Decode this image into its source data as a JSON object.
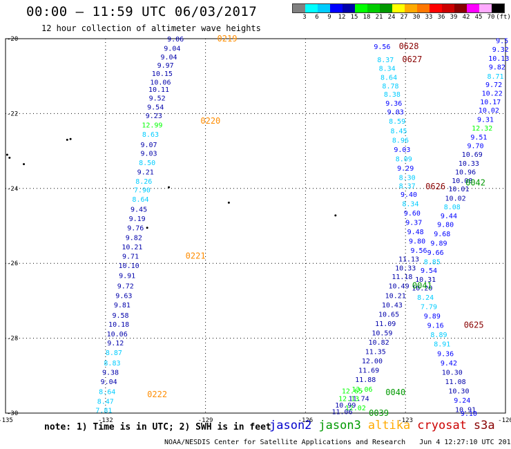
{
  "header": {
    "title": "00:00 — 11:59 UTC 06/03/2017",
    "subtitle": "12 hour collection of altimeter wave heights"
  },
  "colorbar": {
    "colors": [
      "#808080",
      "#00ffff",
      "#00ccff",
      "#0000ff",
      "#0000aa",
      "#00ff00",
      "#00cc00",
      "#009900",
      "#ffff00",
      "#ffaa00",
      "#ff7700",
      "#ff0000",
      "#cc0000",
      "#880000",
      "#ff00ff",
      "#ffaaff",
      "#000000"
    ],
    "labels": [
      "3",
      "6",
      "9",
      "12",
      "15",
      "18",
      "21",
      "24",
      "27",
      "30",
      "33",
      "36",
      "39",
      "42",
      "45",
      "70",
      "(ft)"
    ]
  },
  "axes": {
    "lon_ticks": [
      "-135",
      "-132",
      "-129",
      "-126",
      "-123",
      "-120"
    ],
    "lat_ticks": [
      "-20",
      "-22",
      "-24",
      "-26",
      "-28",
      "-30"
    ]
  },
  "map": {
    "lon_range": [
      -135,
      -120
    ],
    "lat_range": [
      -30,
      -20
    ],
    "islands": [
      {
        "lon": -133.05,
        "lat": -22.68
      },
      {
        "lon": -133.15,
        "lat": -22.7
      },
      {
        "lon": -134.95,
        "lat": -23.1
      },
      {
        "lon": -134.88,
        "lat": -23.18
      },
      {
        "lon": -134.45,
        "lat": -23.35
      },
      {
        "lon": -130.1,
        "lat": -23.97
      },
      {
        "lon": -130.75,
        "lat": -25.05
      },
      {
        "lon": -128.3,
        "lat": -24.38
      },
      {
        "lon": -125.1,
        "lat": -24.72
      }
    ]
  },
  "series_colors": {
    "jason2": "#0000cc",
    "jason3": "#009900",
    "altika": "#ffaa00",
    "cryosat": "#cc0000",
    "s3a": "#880000",
    "c3": "#00ccff",
    "c4": "#0000ff",
    "c5": "#0000aa",
    "c6": "#00ff00",
    "track": "#ff8c00"
  },
  "tracks": [
    {
      "lon": -128.35,
      "lat": -20.0,
      "text": "0219",
      "color": "#ff8c00"
    },
    {
      "lon": -128.85,
      "lat": -22.2,
      "text": "0220",
      "color": "#ff8c00"
    },
    {
      "lon": -129.3,
      "lat": -25.8,
      "text": "0221",
      "color": "#ff8c00"
    },
    {
      "lon": -130.45,
      "lat": -29.5,
      "text": "0222",
      "color": "#ff8c00"
    },
    {
      "lon": -122.9,
      "lat": -20.2,
      "text": "0628",
      "color": "#880000"
    },
    {
      "lon": -122.8,
      "lat": -20.55,
      "text": "0627",
      "color": "#880000"
    },
    {
      "lon": -122.1,
      "lat": -23.95,
      "text": "0626",
      "color": "#880000"
    },
    {
      "lon": -120.9,
      "lat": -23.85,
      "text": "0042",
      "color": "#009900"
    },
    {
      "lon": -122.5,
      "lat": -26.6,
      "text": "0041",
      "color": "#009900"
    },
    {
      "lon": -120.95,
      "lat": -27.65,
      "text": "0625",
      "color": "#880000"
    },
    {
      "lon": -123.3,
      "lat": -29.45,
      "text": "0040",
      "color": "#009900"
    },
    {
      "lon": -123.8,
      "lat": -30.0,
      "text": "0039",
      "color": "#009900"
    }
  ],
  "observations": [
    {
      "lon": -129.9,
      "lat": -20.0,
      "v": "9.06",
      "c": "#0000aa"
    },
    {
      "lon": -130.0,
      "lat": -20.25,
      "v": "9.04",
      "c": "#0000aa"
    },
    {
      "lon": -130.1,
      "lat": -20.48,
      "v": "9.04",
      "c": "#0000aa"
    },
    {
      "lon": -130.2,
      "lat": -20.7,
      "v": "9.97",
      "c": "#0000aa"
    },
    {
      "lon": -130.3,
      "lat": -20.92,
      "v": "10.15",
      "c": "#0000aa"
    },
    {
      "lon": -130.35,
      "lat": -21.15,
      "v": "10.06",
      "c": "#0000aa"
    },
    {
      "lon": -130.4,
      "lat": -21.35,
      "v": "10.11",
      "c": "#0000aa"
    },
    {
      "lon": -130.45,
      "lat": -21.58,
      "v": "9.52",
      "c": "#0000aa"
    },
    {
      "lon": -130.5,
      "lat": -21.82,
      "v": "9.54",
      "c": "#0000aa"
    },
    {
      "lon": -130.55,
      "lat": -22.05,
      "v": "9.23",
      "c": "#0000aa"
    },
    {
      "lon": -130.6,
      "lat": -22.3,
      "v": "12.99",
      "c": "#00ff00"
    },
    {
      "lon": -130.65,
      "lat": -22.55,
      "v": "8.63",
      "c": "#00ccff"
    },
    {
      "lon": -130.7,
      "lat": -22.82,
      "v": "9.07",
      "c": "#0000aa"
    },
    {
      "lon": -130.7,
      "lat": -23.05,
      "v": "9.03",
      "c": "#0000aa"
    },
    {
      "lon": -130.75,
      "lat": -23.3,
      "v": "8.50",
      "c": "#00ccff"
    },
    {
      "lon": -130.8,
      "lat": -23.55,
      "v": "9.21",
      "c": "#0000aa"
    },
    {
      "lon": -130.85,
      "lat": -23.8,
      "v": "8.26",
      "c": "#00ccff"
    },
    {
      "lon": -130.9,
      "lat": -24.03,
      "v": "7.90",
      "c": "#00ccff"
    },
    {
      "lon": -130.95,
      "lat": -24.28,
      "v": "8.64",
      "c": "#00ccff"
    },
    {
      "lon": -131.0,
      "lat": -24.55,
      "v": "9.45",
      "c": "#0000aa"
    },
    {
      "lon": -131.05,
      "lat": -24.8,
      "v": "9.19",
      "c": "#0000aa"
    },
    {
      "lon": -131.1,
      "lat": -25.05,
      "v": "9.76",
      "c": "#0000aa"
    },
    {
      "lon": -131.15,
      "lat": -25.3,
      "v": "9.82",
      "c": "#0000aa"
    },
    {
      "lon": -131.2,
      "lat": -25.55,
      "v": "10.21",
      "c": "#0000aa"
    },
    {
      "lon": -131.25,
      "lat": -25.8,
      "v": "9.71",
      "c": "#0000aa"
    },
    {
      "lon": -131.3,
      "lat": -26.05,
      "v": "10.10",
      "c": "#0000aa"
    },
    {
      "lon": -131.35,
      "lat": -26.32,
      "v": "9.91",
      "c": "#0000aa"
    },
    {
      "lon": -131.4,
      "lat": -26.6,
      "v": "9.72",
      "c": "#0000aa"
    },
    {
      "lon": -131.45,
      "lat": -26.85,
      "v": "9.63",
      "c": "#0000aa"
    },
    {
      "lon": -131.5,
      "lat": -27.1,
      "v": "9.81",
      "c": "#0000aa"
    },
    {
      "lon": -131.55,
      "lat": -27.38,
      "v": "9.58",
      "c": "#0000aa"
    },
    {
      "lon": -131.6,
      "lat": -27.62,
      "v": "10.18",
      "c": "#0000aa"
    },
    {
      "lon": -131.65,
      "lat": -27.88,
      "v": "10.06",
      "c": "#0000aa"
    },
    {
      "lon": -131.7,
      "lat": -28.12,
      "v": "9.12",
      "c": "#0000aa"
    },
    {
      "lon": -131.75,
      "lat": -28.38,
      "v": "8.87",
      "c": "#00ccff"
    },
    {
      "lon": -131.8,
      "lat": -28.65,
      "v": "8.83",
      "c": "#00ccff"
    },
    {
      "lon": -131.85,
      "lat": -28.9,
      "v": "9.38",
      "c": "#0000aa"
    },
    {
      "lon": -131.9,
      "lat": -29.15,
      "v": "9.04",
      "c": "#0000aa"
    },
    {
      "lon": -131.95,
      "lat": -29.42,
      "v": "8.64",
      "c": "#00ccff"
    },
    {
      "lon": -132.0,
      "lat": -29.68,
      "v": "8.47",
      "c": "#00ccff"
    },
    {
      "lon": -132.05,
      "lat": -29.92,
      "v": "7.81",
      "c": "#00ccff"
    },
    {
      "lon": -123.7,
      "lat": -20.2,
      "v": "9.56",
      "c": "#0000ff"
    },
    {
      "lon": -123.6,
      "lat": -20.55,
      "v": "8.37",
      "c": "#00ccff"
    },
    {
      "lon": -123.55,
      "lat": -20.78,
      "v": "8.34",
      "c": "#00ccff"
    },
    {
      "lon": -123.5,
      "lat": -21.02,
      "v": "8.64",
      "c": "#00ccff"
    },
    {
      "lon": -123.45,
      "lat": -21.25,
      "v": "8.78",
      "c": "#00ccff"
    },
    {
      "lon": -123.4,
      "lat": -21.48,
      "v": "8.38",
      "c": "#00ccff"
    },
    {
      "lon": -123.35,
      "lat": -21.72,
      "v": "9.36",
      "c": "#0000ff"
    },
    {
      "lon": -123.3,
      "lat": -21.95,
      "v": "9.03",
      "c": "#0000ff"
    },
    {
      "lon": -123.25,
      "lat": -22.2,
      "v": "8.59",
      "c": "#00ccff"
    },
    {
      "lon": -123.2,
      "lat": -22.45,
      "v": "8.45",
      "c": "#00ccff"
    },
    {
      "lon": -123.15,
      "lat": -22.7,
      "v": "8.96",
      "c": "#00ccff"
    },
    {
      "lon": -123.1,
      "lat": -22.95,
      "v": "9.03",
      "c": "#0000ff"
    },
    {
      "lon": -123.05,
      "lat": -23.2,
      "v": "8.09",
      "c": "#00ccff"
    },
    {
      "lon": -123.0,
      "lat": -23.45,
      "v": "9.29",
      "c": "#0000ff"
    },
    {
      "lon": -122.95,
      "lat": -23.7,
      "v": "8.30",
      "c": "#00ccff"
    },
    {
      "lon": -122.95,
      "lat": -23.92,
      "v": "8.37",
      "c": "#00ccff"
    },
    {
      "lon": -122.9,
      "lat": -24.15,
      "v": "9.40",
      "c": "#0000ff"
    },
    {
      "lon": -122.85,
      "lat": -24.4,
      "v": "8.34",
      "c": "#00ccff"
    },
    {
      "lon": -122.8,
      "lat": -24.65,
      "v": "9.60",
      "c": "#0000ff"
    },
    {
      "lon": -122.75,
      "lat": -24.9,
      "v": "9.37",
      "c": "#0000ff"
    },
    {
      "lon": -122.7,
      "lat": -25.15,
      "v": "9.48",
      "c": "#0000ff"
    },
    {
      "lon": -122.65,
      "lat": -25.4,
      "v": "9.80",
      "c": "#0000ff"
    },
    {
      "lon": -122.6,
      "lat": -25.65,
      "v": "9.56",
      "c": "#0000ff"
    },
    {
      "lon": -122.9,
      "lat": -25.88,
      "v": "11.13",
      "c": "#0000aa"
    },
    {
      "lon": -123.0,
      "lat": -26.12,
      "v": "10.33",
      "c": "#0000aa"
    },
    {
      "lon": -123.1,
      "lat": -26.35,
      "v": "11.18",
      "c": "#0000aa"
    },
    {
      "lon": -123.2,
      "lat": -26.6,
      "v": "10.49",
      "c": "#0000aa"
    },
    {
      "lon": -123.3,
      "lat": -26.85,
      "v": "10.21",
      "c": "#0000aa"
    },
    {
      "lon": -123.4,
      "lat": -27.1,
      "v": "10.43",
      "c": "#0000aa"
    },
    {
      "lon": -123.5,
      "lat": -27.35,
      "v": "10.65",
      "c": "#0000aa"
    },
    {
      "lon": -123.6,
      "lat": -27.6,
      "v": "11.09",
      "c": "#0000aa"
    },
    {
      "lon": -123.7,
      "lat": -27.85,
      "v": "10.59",
      "c": "#0000aa"
    },
    {
      "lon": -123.8,
      "lat": -28.1,
      "v": "10.82",
      "c": "#0000aa"
    },
    {
      "lon": -123.9,
      "lat": -28.35,
      "v": "11.35",
      "c": "#0000aa"
    },
    {
      "lon": -124.0,
      "lat": -28.6,
      "v": "12.00",
      "c": "#0000aa"
    },
    {
      "lon": -124.1,
      "lat": -28.85,
      "v": "11.69",
      "c": "#0000aa"
    },
    {
      "lon": -124.2,
      "lat": -29.1,
      "v": "11.88",
      "c": "#0000aa"
    },
    {
      "lon": -124.3,
      "lat": -29.35,
      "v": "13.06",
      "c": "#00ff00"
    },
    {
      "lon": -124.4,
      "lat": -29.6,
      "v": "11.74",
      "c": "#0000aa"
    },
    {
      "lon": -124.5,
      "lat": -29.85,
      "v": "12.02",
      "c": "#00ff00"
    },
    {
      "lon": -120.1,
      "lat": -20.05,
      "v": "9.5",
      "c": "#0000ff"
    },
    {
      "lon": -120.15,
      "lat": -20.28,
      "v": "9.32",
      "c": "#0000ff"
    },
    {
      "lon": -120.2,
      "lat": -20.52,
      "v": "10.13",
      "c": "#0000ff"
    },
    {
      "lon": -120.25,
      "lat": -20.75,
      "v": "9.82",
      "c": "#0000ff"
    },
    {
      "lon": -120.3,
      "lat": -21.0,
      "v": "8.71",
      "c": "#00ccff"
    },
    {
      "lon": -120.35,
      "lat": -21.22,
      "v": "9.72",
      "c": "#0000ff"
    },
    {
      "lon": -120.4,
      "lat": -21.45,
      "v": "10.22",
      "c": "#0000ff"
    },
    {
      "lon": -120.45,
      "lat": -21.68,
      "v": "10.17",
      "c": "#0000ff"
    },
    {
      "lon": -120.5,
      "lat": -21.9,
      "v": "10.02",
      "c": "#0000ff"
    },
    {
      "lon": -120.6,
      "lat": -22.15,
      "v": "9.31",
      "c": "#0000ff"
    },
    {
      "lon": -120.7,
      "lat": -22.38,
      "v": "12.32",
      "c": "#00ff00"
    },
    {
      "lon": -120.8,
      "lat": -22.62,
      "v": "9.51",
      "c": "#0000ff"
    },
    {
      "lon": -120.9,
      "lat": -22.85,
      "v": "9.70",
      "c": "#0000ff"
    },
    {
      "lon": -121.0,
      "lat": -23.08,
      "v": "10.69",
      "c": "#0000aa"
    },
    {
      "lon": -121.1,
      "lat": -23.32,
      "v": "10.33",
      "c": "#0000aa"
    },
    {
      "lon": -121.2,
      "lat": -23.55,
      "v": "10.96",
      "c": "#0000aa"
    },
    {
      "lon": -121.3,
      "lat": -23.78,
      "v": "10.08",
      "c": "#0000aa"
    },
    {
      "lon": -121.4,
      "lat": -24.0,
      "v": "10.01",
      "c": "#0000aa"
    },
    {
      "lon": -121.5,
      "lat": -24.25,
      "v": "10.02",
      "c": "#0000aa"
    },
    {
      "lon": -121.6,
      "lat": -24.48,
      "v": "8.08",
      "c": "#00ccff"
    },
    {
      "lon": -121.7,
      "lat": -24.72,
      "v": "9.44",
      "c": "#0000ff"
    },
    {
      "lon": -121.8,
      "lat": -24.95,
      "v": "9.80",
      "c": "#0000ff"
    },
    {
      "lon": -121.9,
      "lat": -25.2,
      "v": "9.68",
      "c": "#0000ff"
    },
    {
      "lon": -122.0,
      "lat": -25.45,
      "v": "9.89",
      "c": "#0000ff"
    },
    {
      "lon": -122.1,
      "lat": -25.7,
      "v": "9.66",
      "c": "#0000ff"
    },
    {
      "lon": -122.2,
      "lat": -25.95,
      "v": "8.85",
      "c": "#00ccff"
    },
    {
      "lon": -122.3,
      "lat": -26.18,
      "v": "9.54",
      "c": "#0000ff"
    },
    {
      "lon": -122.4,
      "lat": -26.42,
      "v": "10.31",
      "c": "#0000aa"
    },
    {
      "lon": -122.5,
      "lat": -26.65,
      "v": "10.20",
      "c": "#0000aa"
    },
    {
      "lon": -122.4,
      "lat": -26.9,
      "v": "8.24",
      "c": "#00ccff"
    },
    {
      "lon": -122.3,
      "lat": -27.15,
      "v": "7.79",
      "c": "#00ccff"
    },
    {
      "lon": -122.2,
      "lat": -27.4,
      "v": "9.89",
      "c": "#0000ff"
    },
    {
      "lon": -122.1,
      "lat": -27.65,
      "v": "9.16",
      "c": "#0000ff"
    },
    {
      "lon": -122.0,
      "lat": -27.9,
      "v": "8.89",
      "c": "#00ccff"
    },
    {
      "lon": -121.9,
      "lat": -28.15,
      "v": "8.91",
      "c": "#00ccff"
    },
    {
      "lon": -121.8,
      "lat": -28.4,
      "v": "9.36",
      "c": "#0000ff"
    },
    {
      "lon": -121.7,
      "lat": -28.65,
      "v": "9.42",
      "c": "#0000ff"
    },
    {
      "lon": -121.6,
      "lat": -28.9,
      "v": "10.30",
      "c": "#0000aa"
    },
    {
      "lon": -121.5,
      "lat": -29.15,
      "v": "11.08",
      "c": "#0000aa"
    },
    {
      "lon": -121.4,
      "lat": -29.4,
      "v": "10.30",
      "c": "#0000aa"
    },
    {
      "lon": -121.3,
      "lat": -29.65,
      "v": "9.24",
      "c": "#0000ff"
    },
    {
      "lon": -121.2,
      "lat": -29.9,
      "v": "10.91",
      "c": "#0000aa"
    },
    {
      "lon": -121.1,
      "lat": -30.0,
      "v": "9.10",
      "c": "#0000ff"
    }
  ],
  "extra_obs": [
    {
      "lon": -124.6,
      "lat": -29.4,
      "v": "12.65",
      "c": "#00ff00"
    },
    {
      "lon": -124.7,
      "lat": -29.6,
      "v": "12.13",
      "c": "#00ff00"
    },
    {
      "lon": -124.8,
      "lat": -29.78,
      "v": "10.99",
      "c": "#0000aa"
    },
    {
      "lon": -124.9,
      "lat": -29.95,
      "v": "11.06",
      "c": "#0000aa"
    }
  ],
  "legend": {
    "note": "note: 1) Time is in UTC; 2) SWH is in feet",
    "items": [
      {
        "label": "jason2",
        "color": "#0000cc"
      },
      {
        "label": "jason3",
        "color": "#009900"
      },
      {
        "label": "altika",
        "color": "#ffaa00"
      },
      {
        "label": "cryosat",
        "color": "#cc0000"
      },
      {
        "label": "s3a",
        "color": "#880000"
      }
    ]
  },
  "footer": {
    "credit": "NOAA/NESDIS Center for Satellite Applications and Research",
    "timestamp": "Jun  4 12:27:10 UTC 2017"
  }
}
